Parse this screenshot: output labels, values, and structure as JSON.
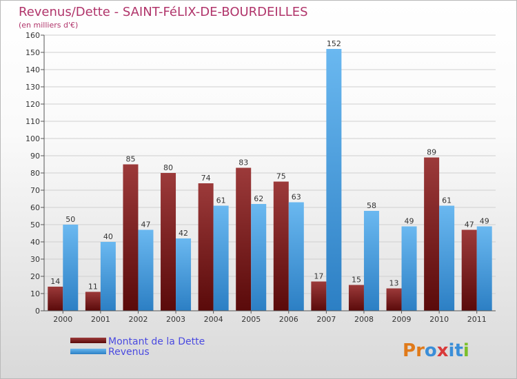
{
  "chart_data": {
    "type": "bar",
    "title": "Revenus/Dette - SAINT-FéLIX-DE-BOURDEILLES",
    "subtitle": "(en milliers d'€)",
    "categories": [
      "2000",
      "2001",
      "2002",
      "2003",
      "2004",
      "2005",
      "2006",
      "2007",
      "2008",
      "2009",
      "2010",
      "2011"
    ],
    "series": [
      {
        "name": "Montant de la Dette",
        "values": [
          14,
          11,
          85,
          80,
          74,
          83,
          75,
          17,
          15,
          13,
          89,
          47
        ]
      },
      {
        "name": "Revenus",
        "values": [
          50,
          40,
          47,
          42,
          61,
          62,
          63,
          152,
          58,
          49,
          61,
          49
        ]
      }
    ],
    "ylim": [
      0,
      160
    ],
    "yticks": [
      0,
      10,
      20,
      30,
      40,
      50,
      60,
      70,
      80,
      90,
      100,
      110,
      120,
      130,
      140,
      150,
      160
    ],
    "grid": true,
    "legend_position": "bottom-left"
  },
  "colors": {
    "title": "#b0346a",
    "legend_text": "#4a4ae0",
    "dette_dark": "#5a0a0a",
    "dette_light": "#9c3a3a",
    "revenus_dark": "#2c7fc4",
    "revenus_light": "#6ab8f0",
    "grid": "#cfcfcf"
  },
  "logo": {
    "text": "Proxiti"
  }
}
